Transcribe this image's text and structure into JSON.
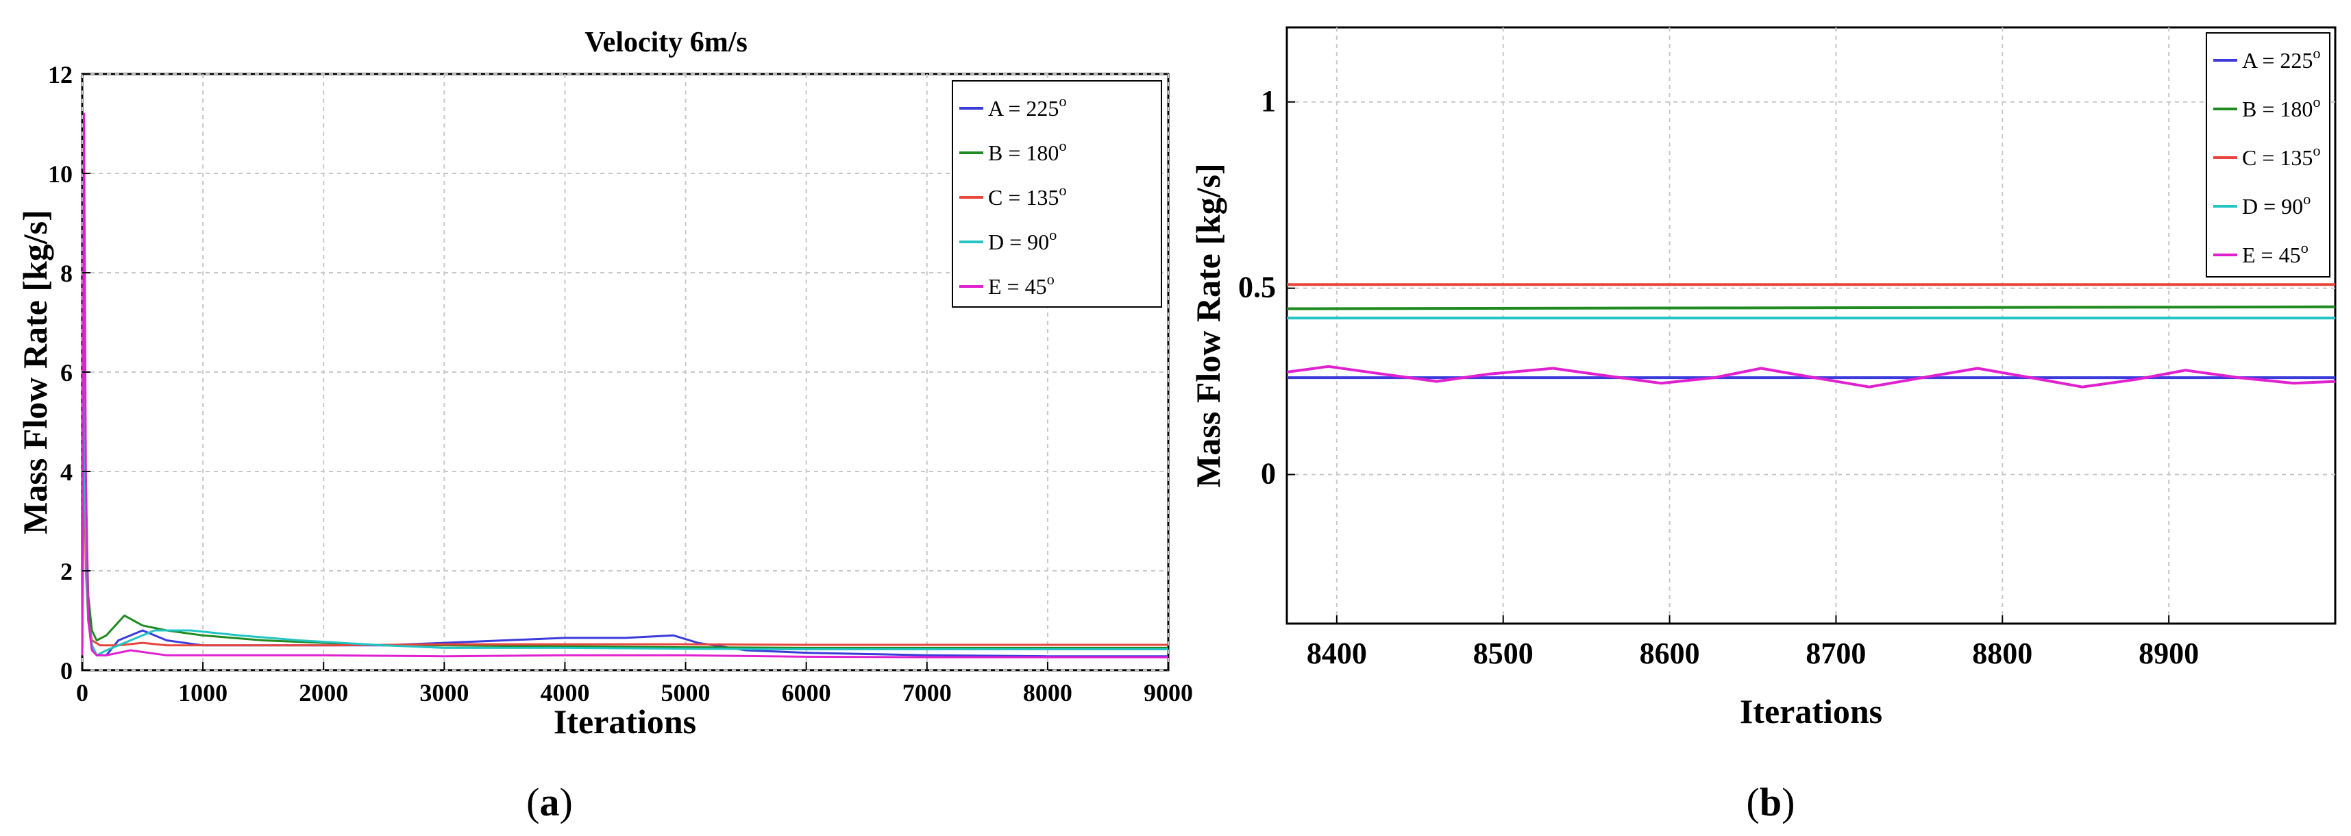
{
  "chart_data": [
    {
      "id": "a",
      "type": "line",
      "panel_label": "(a)",
      "panel_letter": "a",
      "title": "Velocity 6m/s",
      "xlabel": "Iterations",
      "ylabel": "Mass Flow Rate [kg/s]",
      "xlim": [
        0,
        9000
      ],
      "ylim": [
        0,
        12
      ],
      "xticks": [
        0,
        1000,
        2000,
        3000,
        4000,
        5000,
        6000,
        7000,
        8000,
        9000
      ],
      "yticks": [
        0,
        2,
        4,
        6,
        8,
        10,
        12
      ],
      "grid": true,
      "legend_position": "top-right",
      "series": [
        {
          "name": "A = 225",
          "sup": "o",
          "color": "#3b3bdc",
          "x": [
            0,
            15,
            30,
            50,
            80,
            120,
            200,
            300,
            500,
            700,
            1000,
            1500,
            2000,
            2500,
            3000,
            3500,
            4000,
            4500,
            4900,
            5100,
            5500,
            6000,
            7000,
            8000,
            9000
          ],
          "y": [
            0.3,
            8.2,
            3.0,
            1.2,
            0.5,
            0.3,
            0.3,
            0.6,
            0.8,
            0.6,
            0.5,
            0.5,
            0.5,
            0.5,
            0.55,
            0.6,
            0.65,
            0.65,
            0.7,
            0.55,
            0.4,
            0.35,
            0.3,
            0.28,
            0.28
          ]
        },
        {
          "name": "B = 180",
          "sup": "o",
          "color": "#1f8a1f",
          "x": [
            0,
            15,
            30,
            50,
            80,
            120,
            200,
            350,
            500,
            700,
            1000,
            1500,
            2000,
            2500,
            3000,
            4000,
            5000,
            6000,
            7000,
            8000,
            9000
          ],
          "y": [
            0.3,
            7.5,
            3.5,
            1.5,
            0.8,
            0.6,
            0.7,
            1.1,
            0.9,
            0.8,
            0.7,
            0.6,
            0.55,
            0.5,
            0.5,
            0.48,
            0.46,
            0.45,
            0.45,
            0.45,
            0.45
          ]
        },
        {
          "name": "C = 135",
          "sup": "o",
          "color": "#e8453c",
          "x": [
            0,
            15,
            30,
            50,
            80,
            150,
            300,
            500,
            700,
            1000,
            1500,
            2000,
            3000,
            4000,
            5000,
            6000,
            7000,
            8000,
            9000
          ],
          "y": [
            0.3,
            4.5,
            2.0,
            1.0,
            0.6,
            0.5,
            0.5,
            0.55,
            0.5,
            0.5,
            0.5,
            0.5,
            0.52,
            0.52,
            0.52,
            0.51,
            0.51,
            0.51,
            0.51
          ]
        },
        {
          "name": "D = 90",
          "sup": "o",
          "color": "#22c4c4",
          "x": [
            0,
            15,
            30,
            50,
            80,
            120,
            200,
            400,
            600,
            900,
            1300,
            1800,
            2500,
            3000,
            4000,
            5000,
            6000,
            7000,
            8000,
            9000
          ],
          "y": [
            0.3,
            6.0,
            2.5,
            1.0,
            0.5,
            0.3,
            0.4,
            0.6,
            0.8,
            0.8,
            0.7,
            0.6,
            0.5,
            0.45,
            0.45,
            0.43,
            0.42,
            0.42,
            0.42,
            0.42
          ]
        },
        {
          "name": "E = 45",
          "sup": "o",
          "color": "#e020d0",
          "x": [
            0,
            15,
            30,
            50,
            80,
            120,
            200,
            400,
            700,
            1000,
            1500,
            2000,
            3000,
            4000,
            5000,
            6000,
            7000,
            8000,
            9000
          ],
          "y": [
            0.3,
            11.2,
            4.0,
            1.0,
            0.4,
            0.3,
            0.3,
            0.4,
            0.3,
            0.3,
            0.3,
            0.3,
            0.28,
            0.3,
            0.3,
            0.27,
            0.26,
            0.26,
            0.26
          ]
        }
      ]
    },
    {
      "id": "b",
      "type": "line",
      "panel_label": "(b)",
      "panel_letter": "b",
      "title": "",
      "xlabel": "Iterations",
      "ylabel": "Mass Flow Rate [kg/s]",
      "xlim": [
        8370,
        9000
      ],
      "ylim": [
        -0.4,
        1.2
      ],
      "xticks": [
        8400,
        8500,
        8600,
        8700,
        8800,
        8900
      ],
      "yticks": [
        0,
        0.5,
        1
      ],
      "grid": true,
      "legend_position": "top-right",
      "series": [
        {
          "name": "A = 225",
          "sup": "o",
          "color": "#3b3bdc",
          "x": [
            8370,
            9000
          ],
          "y": [
            0.26,
            0.26
          ]
        },
        {
          "name": "B = 180",
          "sup": "o",
          "color": "#1f8a1f",
          "x": [
            8370,
            9000
          ],
          "y": [
            0.445,
            0.45
          ]
        },
        {
          "name": "C = 135",
          "sup": "o",
          "color": "#e8453c",
          "x": [
            8370,
            9000
          ],
          "y": [
            0.51,
            0.51
          ]
        },
        {
          "name": "D = 90",
          "sup": "o",
          "color": "#22c4c4",
          "x": [
            8370,
            9000
          ],
          "y": [
            0.42,
            0.42
          ]
        },
        {
          "name": "E = 45",
          "sup": "o",
          "color": "#e020d0",
          "x": [
            8370,
            8395,
            8427,
            8460,
            8492,
            8530,
            8562,
            8595,
            8627,
            8655,
            8687,
            8720,
            8752,
            8785,
            8817,
            8848,
            8880,
            8910,
            8942,
            8975,
            9000
          ],
          "y": [
            0.275,
            0.29,
            0.27,
            0.25,
            0.27,
            0.285,
            0.265,
            0.245,
            0.26,
            0.285,
            0.26,
            0.235,
            0.26,
            0.285,
            0.26,
            0.235,
            0.255,
            0.28,
            0.26,
            0.245,
            0.25
          ]
        }
      ]
    }
  ]
}
